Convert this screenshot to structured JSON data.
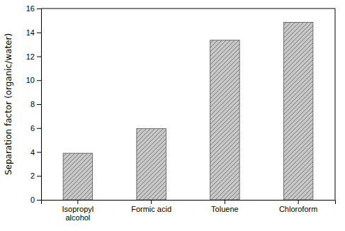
{
  "chart_data": {
    "type": "bar",
    "categories": [
      "Isopropyl\nalcohol",
      "Formic acid",
      "Toluene",
      "Chloroform"
    ],
    "values": [
      3.9,
      5.95,
      13.35,
      14.85
    ],
    "color": "#c8c8c8",
    "ylabel": "Separation factor (organic/water)",
    "ylim": [
      0,
      16
    ],
    "yticks": [
      0,
      2,
      4,
      6,
      8,
      10,
      12,
      14,
      16
    ]
  }
}
